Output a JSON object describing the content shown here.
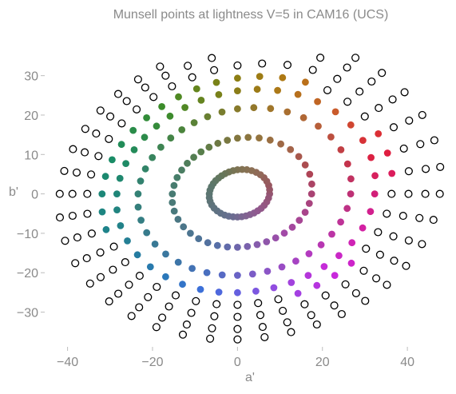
{
  "chart_data": {
    "type": "scatter",
    "title": "Munsell points at lightness V=5 in CAM16 (UCS)",
    "xlabel": "a'",
    "ylabel": "b'",
    "xlim": [
      -45,
      49
    ],
    "ylim": [
      -38,
      35
    ],
    "xticks": [
      -40,
      -20,
      0,
      20,
      40
    ],
    "yticks": [
      -30,
      -20,
      -10,
      0,
      10,
      20,
      30
    ],
    "grid": false,
    "legend": "none",
    "hues": 40,
    "rings": [
      {
        "chroma_step": 2,
        "base_radius": 9.8,
        "filled": true
      },
      {
        "chroma_step": 4,
        "base_radius": 17.5,
        "filled": true
      },
      {
        "chroma_step": 6,
        "base_radius": 23.5,
        "filled": true
      },
      {
        "chroma_step": 8,
        "base_radius": 28.5,
        "filled": true
      },
      {
        "chroma_step": 10,
        "base_radius": 32.0,
        "filled": "partial"
      },
      {
        "chroma_step": 12,
        "base_radius": 35.5,
        "filled": false
      },
      {
        "chroma_step": 14,
        "base_radius": 39.0,
        "filled": false
      },
      {
        "chroma_step": 16,
        "base_radius": 42.0,
        "filled": false
      }
    ],
    "hue_colors": {
      "red": "#e01a3a",
      "magenta": "#d21fd6",
      "purple": "#9b55e8",
      "blue": "#3a6ee0",
      "teal": "#1d8c8c",
      "green": "#1a8a2e",
      "olive": "#7a7a00",
      "orange": "#c8661e",
      "neutral": "#7a6e6e"
    }
  }
}
